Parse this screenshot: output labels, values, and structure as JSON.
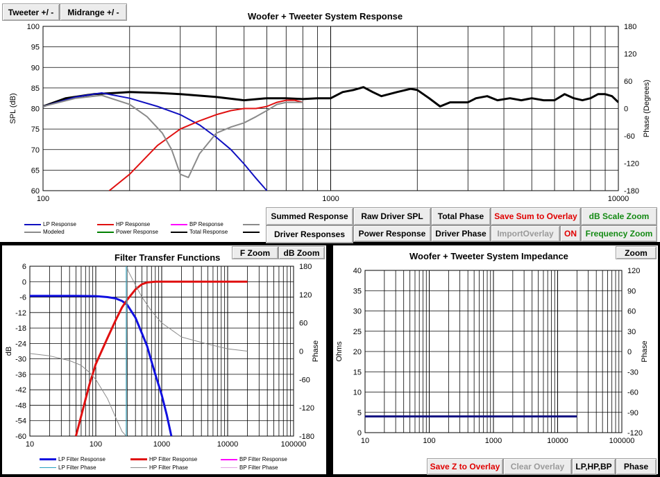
{
  "top_buttons": {
    "tweeter": "Tweeter +/ -",
    "midrange": "Midrange   +/ -"
  },
  "system_response": {
    "title": "Woofer + Tweeter    System Response",
    "ylabel_left": "SPL  (dB)",
    "ylabel_right": "Phase (Degrees)",
    "y_ticks": [
      "100",
      "95",
      "90",
      "85",
      "80",
      "75",
      "70",
      "65",
      "60"
    ],
    "phase_ticks": [
      "180",
      "120",
      "60",
      "0",
      "-60",
      "-120",
      "-180"
    ],
    "x_ticks": [
      "100",
      "1000",
      "10000"
    ],
    "legend": {
      "lp": "LP Response",
      "hp": "HP Response",
      "bp": "BP Response",
      "modeled": "Modeled",
      "power": "Power Response",
      "total": "Total Response"
    },
    "colors": {
      "lp": "#1010c0",
      "hp": "#e01010",
      "bp": "#ff00ff",
      "modeled": "#8a8a8a",
      "power": "#008000",
      "total": "#000000"
    }
  },
  "buttons": {
    "summed_response": "Summed Response",
    "raw_driver_spl": "Raw Driver SPL",
    "total_phase": "Total Phase",
    "save_sum_overlay": "Save Sum to Overlay",
    "db_scale_zoom": "dB Scale Zoom",
    "driver_responses": "Driver Responses",
    "power_response": "Power Response",
    "driver_phase": "Driver Phase",
    "import_overlay": "ImportOverlay",
    "on": "ON",
    "frequency_zoom": "Frequency Zoom"
  },
  "filter": {
    "title": "Filter Transfer Functions",
    "f_zoom": "F Zoom",
    "db_zoom": "dB Zoom",
    "ylabel_left": "dB",
    "ylabel_right": "Phase",
    "y_ticks": [
      "6",
      "0",
      "-6",
      "-12",
      "-18",
      "-24",
      "-30",
      "-36",
      "-42",
      "-48",
      "-54",
      "-60"
    ],
    "phase_ticks": [
      "180",
      "120",
      "60",
      "0",
      "-60",
      "-120",
      "-180"
    ],
    "x_ticks": [
      "10",
      "100",
      "1000",
      "10000",
      "100000"
    ],
    "legend": {
      "lp": "LP Filter Response",
      "hp": "HP Filter Response",
      "bp": "BP Filter Response",
      "lp_phase": "LP Filter Phase",
      "hp_phase": "HP Filter Phase",
      "bp_phase": "BP Filter Phase"
    }
  },
  "impedance": {
    "title": "Woofer + Tweeter    System Impedance",
    "zoom": "Zoom",
    "ylabel_left": "Ohms",
    "ylabel_right": "Phase",
    "y_ticks": [
      "40",
      "35",
      "30",
      "25",
      "20",
      "15",
      "10",
      "5",
      "0"
    ],
    "phase_ticks": [
      "120",
      "90",
      "60",
      "30",
      "0",
      "-30",
      "-60",
      "-90",
      "-120"
    ],
    "x_ticks": [
      "10",
      "100",
      "1000",
      "10000",
      "100000"
    ],
    "save_z": "Save Z to Overlay",
    "clear_overlay": "Clear Overlay",
    "lp_hp_bp": "LP,HP,BP",
    "phase": "Phase"
  },
  "chart_data": [
    {
      "type": "line",
      "title": "Woofer + Tweeter    System Response",
      "xlabel": "",
      "ylabel": "SPL  (dB)",
      "xscale": "log",
      "xlim": [
        100,
        10000
      ],
      "ylim": [
        60,
        100
      ],
      "y2label": "Phase (Degrees)",
      "y2lim": [
        -180,
        180
      ],
      "grid": true,
      "legend_position": "bottom-left",
      "series": [
        {
          "name": "Total Response",
          "color": "#000000",
          "x": [
            100,
            120,
            150,
            180,
            200,
            250,
            300,
            400,
            500,
            600,
            700,
            800,
            900,
            1000,
            1100,
            1200,
            1300,
            1400,
            1500,
            1700,
            1900,
            2000,
            2200,
            2400,
            2600,
            2800,
            3000,
            3200,
            3500,
            3800,
            4200,
            4600,
            5000,
            5500,
            6000,
            6500,
            7000,
            7500,
            8000,
            8500,
            9000,
            9500,
            10000
          ],
          "y": [
            80.5,
            82.5,
            83.5,
            83.8,
            84,
            83.8,
            83.5,
            82.8,
            82,
            82.5,
            82.5,
            82.3,
            82.5,
            82.5,
            84,
            84.5,
            85.2,
            84,
            83,
            84,
            84.8,
            84.5,
            82.5,
            80.5,
            81.5,
            81.5,
            81.5,
            82.5,
            83,
            82,
            82.5,
            82,
            82.5,
            82,
            82,
            83.5,
            82.5,
            82,
            82.5,
            83.5,
            83.5,
            83,
            81.5
          ]
        },
        {
          "name": "LP Response",
          "color": "#1010c0",
          "x": [
            100,
            130,
            160,
            200,
            250,
            300,
            350,
            400,
            450,
            500,
            550,
            600
          ],
          "y": [
            80.5,
            82.8,
            83.8,
            82.5,
            80.5,
            78.5,
            76,
            73,
            70,
            66.5,
            63,
            60
          ]
        },
        {
          "name": "HP Response",
          "color": "#e01010",
          "x": [
            170,
            200,
            250,
            300,
            350,
            400,
            450,
            500,
            550,
            600,
            650,
            700,
            750,
            800
          ],
          "y": [
            60,
            64,
            71,
            75,
            77,
            78.5,
            79.5,
            80,
            80,
            80.5,
            81.5,
            82,
            82,
            81.5
          ]
        },
        {
          "name": "Modeled",
          "color": "#8a8a8a",
          "x": [
            100,
            130,
            160,
            200,
            230,
            260,
            280,
            300,
            320,
            350,
            400,
            450,
            500,
            550,
            600,
            650,
            700,
            750,
            800
          ],
          "y": [
            80.5,
            82.5,
            83.2,
            81,
            78,
            74,
            70,
            64,
            63.2,
            69,
            74,
            75.5,
            76.5,
            78,
            79.5,
            81,
            81.5,
            81.5,
            81.5
          ]
        }
      ]
    },
    {
      "type": "line",
      "title": "Filter Transfer Functions",
      "ylabel": "dB",
      "xscale": "log",
      "xlim": [
        10,
        100000
      ],
      "ylim": [
        -60,
        6
      ],
      "y2label": "Phase",
      "y2lim": [
        -180,
        180
      ],
      "grid": true,
      "legend_position": "bottom",
      "series": [
        {
          "name": "LP Filter Response",
          "color": "#1010e0",
          "x": [
            10,
            50,
            100,
            150,
            200,
            250,
            300,
            400,
            500,
            600,
            700,
            800,
            1000,
            1200,
            1400
          ],
          "y": [
            -5.5,
            -5.5,
            -5.6,
            -6,
            -6.5,
            -7.5,
            -9,
            -14,
            -20,
            -25,
            -31,
            -36,
            -44,
            -52,
            -60
          ]
        },
        {
          "name": "HP Filter Response",
          "color": "#e01010",
          "x": [
            50,
            80,
            100,
            150,
            200,
            250,
            300,
            400,
            500,
            600,
            800,
            1000,
            2000,
            5000,
            10000,
            20000
          ],
          "y": [
            -60,
            -40,
            -32,
            -22,
            -15,
            -10,
            -7,
            -3,
            -1,
            -0.3,
            0,
            0,
            0,
            0,
            0,
            0
          ]
        },
        {
          "name": "HP Filter Phase",
          "color": "#8a8a8a",
          "x": [
            10,
            20,
            40,
            60,
            80,
            100,
            150,
            200,
            250,
            290,
            300,
            310,
            400,
            500,
            700,
            1000,
            2000,
            5000,
            10000,
            20000
          ],
          "y": [
            -5,
            -10,
            -20,
            -30,
            -45,
            -60,
            -100,
            -140,
            -170,
            -180,
            178,
            170,
            140,
            115,
            85,
            60,
            30,
            15,
            5,
            0
          ]
        },
        {
          "name": "LP Filter Phase",
          "color": "#20a0c0",
          "x": [
            290,
            290
          ],
          "y": [
            -180,
            180
          ]
        }
      ]
    },
    {
      "type": "line",
      "title": "Woofer + Tweeter    System Impedance",
      "ylabel": "Ohms",
      "xscale": "log",
      "xlim": [
        10,
        100000
      ],
      "ylim": [
        0,
        40
      ],
      "y2label": "Phase",
      "y2lim": [
        -120,
        120
      ],
      "grid": true,
      "series": [
        {
          "name": "Impedance",
          "color": "#101080",
          "x": [
            10,
            20000
          ],
          "y": [
            4,
            4
          ]
        }
      ]
    }
  ]
}
